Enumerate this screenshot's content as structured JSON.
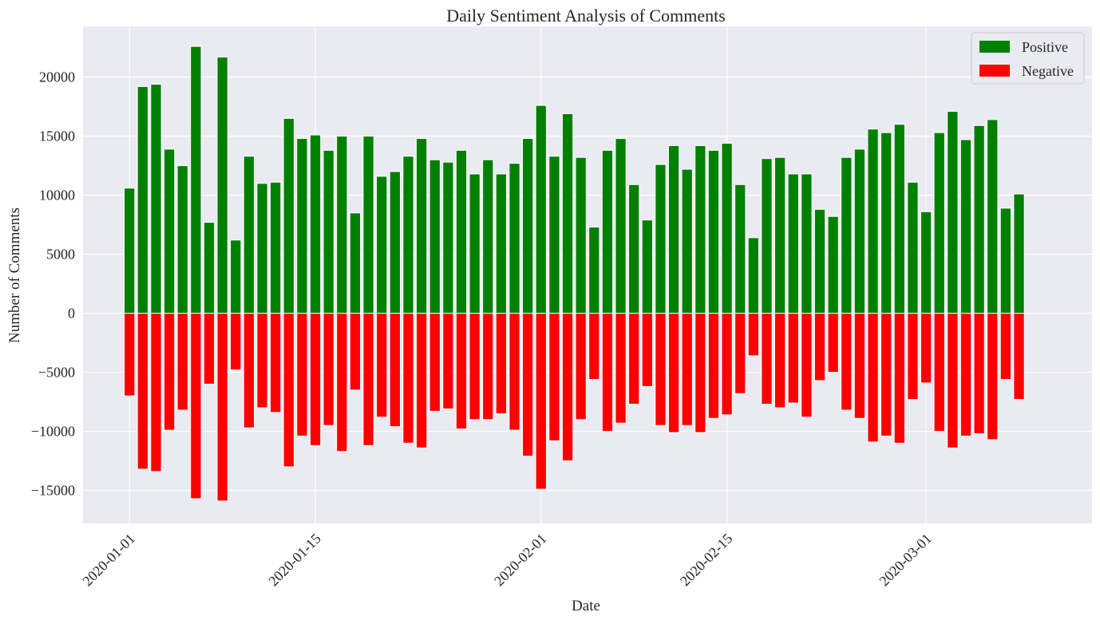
{
  "chart_data": {
    "type": "bar",
    "title": "Daily Sentiment Analysis of Comments",
    "xlabel": "Date",
    "ylabel": "Number of Comments",
    "start_date": "2020-01-01",
    "x_tick_labels": [
      "2020-01-01",
      "2020-01-15",
      "2020-02-01",
      "2020-02-15",
      "2020-03-01"
    ],
    "x_tick_day_offsets": [
      0,
      14,
      31,
      45,
      60
    ],
    "y_tick_labels": [
      "−15000",
      "−10000",
      "−5000",
      "0",
      "5000",
      "10000",
      "15000",
      "20000"
    ],
    "y_tick_values": [
      -15000,
      -10000,
      -5000,
      0,
      5000,
      10000,
      15000,
      20000
    ],
    "ylim": [
      -17800,
      24300
    ],
    "xlim_days": [
      -3.5,
      72.5
    ],
    "grid": true,
    "legend_position": "top-right",
    "colors": {
      "Positive": "#008000",
      "Negative": "#ff0000",
      "background": "#eaeaf2",
      "grid": "#ffffff"
    },
    "series": [
      {
        "name": "Positive",
        "values": [
          10600,
          19200,
          19400,
          13900,
          12500,
          22600,
          7700,
          21700,
          6200,
          13300,
          11000,
          11100,
          16500,
          14800,
          15100,
          13800,
          15000,
          8500,
          15000,
          11600,
          12000,
          13300,
          14800,
          13000,
          12800,
          13800,
          11800,
          13000,
          11800,
          12700,
          14800,
          17600,
          13300,
          16900,
          13200,
          7300,
          13800,
          14800,
          10900,
          7900,
          12600,
          14200,
          12200,
          14200,
          13800,
          14400,
          10900,
          6400,
          13100,
          13200,
          11800,
          11800,
          8800,
          8200,
          13200,
          13900,
          15600,
          15300,
          16000,
          11100,
          8600,
          15300,
          17100,
          14700,
          15900,
          16400,
          8900,
          10100
        ]
      },
      {
        "name": "Negative",
        "values": [
          -7000,
          -13200,
          -13400,
          -9900,
          -8200,
          -15700,
          -6000,
          -15900,
          -4800,
          -9700,
          -8000,
          -8400,
          -13000,
          -10400,
          -11200,
          -9500,
          -11700,
          -6500,
          -11200,
          -8800,
          -9600,
          -11000,
          -11400,
          -8300,
          -8100,
          -9800,
          -9000,
          -9000,
          -8500,
          -9900,
          -12100,
          -14900,
          -10800,
          -12500,
          -9000,
          -5600,
          -10000,
          -9300,
          -7700,
          -6200,
          -9500,
          -10100,
          -9500,
          -10100,
          -8900,
          -8600,
          -6800,
          -3600,
          -7700,
          -8000,
          -7600,
          -8800,
          -5700,
          -5000,
          -8200,
          -8900,
          -10900,
          -10400,
          -11000,
          -7300,
          -5900,
          -10000,
          -11400,
          -10400,
          -10200,
          -10700,
          -5600,
          -7300
        ]
      }
    ]
  }
}
